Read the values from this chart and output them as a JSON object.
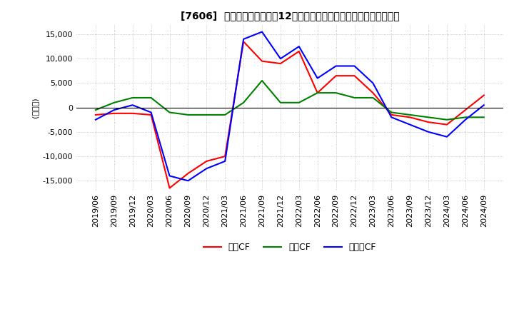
{
  "title": "[7606]  キャッシュフローの12か月移動合計の対前年同期増減額の推移",
  "ylabel": "(百万円)",
  "ylim": [
    -17000,
    17000
  ],
  "yticks": [
    -15000,
    -10000,
    -5000,
    0,
    5000,
    10000,
    15000
  ],
  "legend": [
    "営業CF",
    "投賃CF",
    "フリーCF"
  ],
  "colors": {
    "営業CF": "#ff0000",
    "投賃CF": "#008000",
    "フリーCF": "#0000ff"
  },
  "x_labels": [
    "2019/06",
    "2019/09",
    "2019/12",
    "2020/03",
    "2020/06",
    "2020/09",
    "2020/12",
    "2021/03",
    "2021/06",
    "2021/09",
    "2021/12",
    "2022/03",
    "2022/06",
    "2022/09",
    "2022/12",
    "2023/03",
    "2023/06",
    "2023/09",
    "2023/12",
    "2024/03",
    "2024/06",
    "2024/09"
  ],
  "eiCF": [
    -1500,
    -1200,
    -1200,
    -1500,
    -16500,
    -13500,
    -11000,
    -10000,
    13500,
    9500,
    9000,
    11500,
    3000,
    6500,
    6500,
    3000,
    -1500,
    -2000,
    -3000,
    -3500,
    -500,
    2500
  ],
  "toCF": [
    -500,
    1000,
    2000,
    2000,
    -1000,
    -1500,
    -1500,
    -1500,
    1000,
    5500,
    1000,
    1000,
    3000,
    3000,
    2000,
    2000,
    -1000,
    -1500,
    -2000,
    -2500,
    -2000,
    -2000
  ],
  "frCF": [
    -2500,
    -500,
    500,
    -1000,
    -14000,
    -15000,
    -12500,
    -11000,
    14000,
    15500,
    10000,
    12500,
    6000,
    8500,
    8500,
    5000,
    -2000,
    -3500,
    -5000,
    -6000,
    -2500,
    500
  ],
  "background_color": "#ffffff",
  "grid_color": "#aaaaaa"
}
